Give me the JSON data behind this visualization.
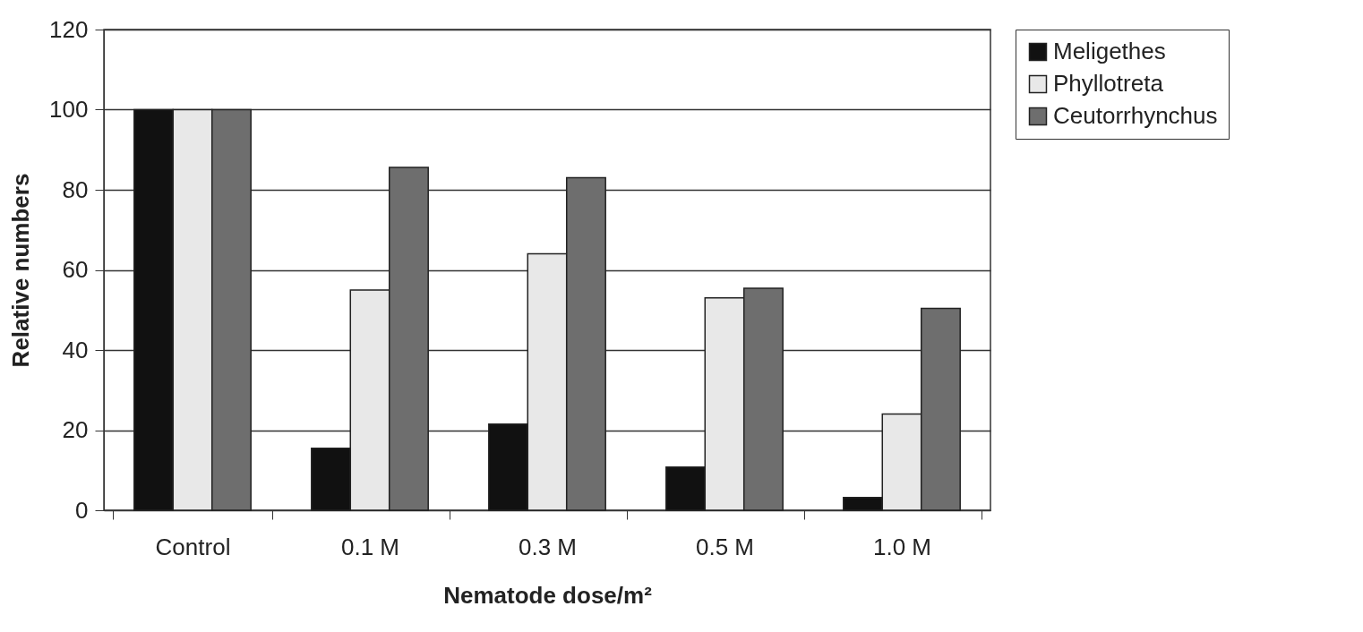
{
  "chart_data": {
    "type": "bar",
    "xlabel": "Nematode dose/m²",
    "ylabel": "Relative numbers",
    "categories": [
      "Control",
      "0.1 M",
      "0.3 M",
      "0.5 M",
      "1.0 M"
    ],
    "series": [
      {
        "name": "Meligethes",
        "color": "#111111",
        "values": [
          100,
          15.5,
          21.5,
          10.8,
          3.2
        ]
      },
      {
        "name": "Phyllotreta",
        "color": "#e8e8e8",
        "values": [
          100,
          55,
          64,
          53,
          24
        ]
      },
      {
        "name": "Ceutorrhynchus",
        "color": "#6e6e6e",
        "values": [
          100,
          85.6,
          83,
          55.4,
          50.4
        ]
      }
    ],
    "ylim": [
      0,
      120
    ],
    "yticks": [
      0,
      20,
      40,
      60,
      80,
      100,
      120
    ],
    "grid": "y",
    "legend": "right"
  }
}
